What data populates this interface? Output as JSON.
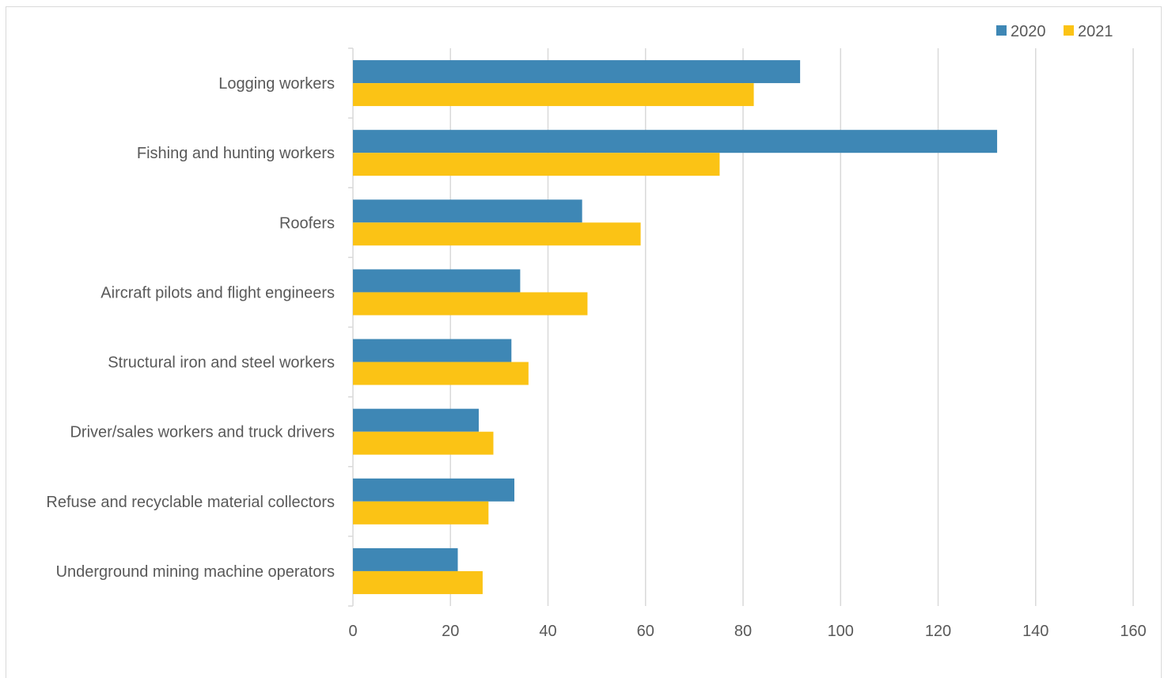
{
  "chart_data": {
    "type": "bar",
    "orientation": "horizontal",
    "categories": [
      "Logging workers",
      "Fishing and hunting workers",
      "Roofers",
      "Aircraft pilots and flight engineers",
      "Structural iron and steel workers",
      "Driver/sales workers and truck drivers",
      "Refuse and recyclable material collectors",
      "Underground mining machine operators"
    ],
    "series": [
      {
        "name": "2020",
        "color": "#3e87b5",
        "values": [
          91.7,
          132.1,
          47.0,
          34.3,
          32.5,
          25.8,
          33.1,
          21.5
        ]
      },
      {
        "name": "2021",
        "color": "#fbc315",
        "values": [
          82.2,
          75.2,
          59.0,
          48.1,
          36.0,
          28.8,
          27.8,
          26.6
        ]
      }
    ],
    "title": "",
    "xlabel": "",
    "ylabel": "",
    "xlim": [
      0,
      160
    ],
    "xticks": [
      "0",
      "20",
      "40",
      "60",
      "80",
      "100",
      "120",
      "140",
      "160"
    ],
    "grid": "vertical",
    "legend": "top-right"
  }
}
